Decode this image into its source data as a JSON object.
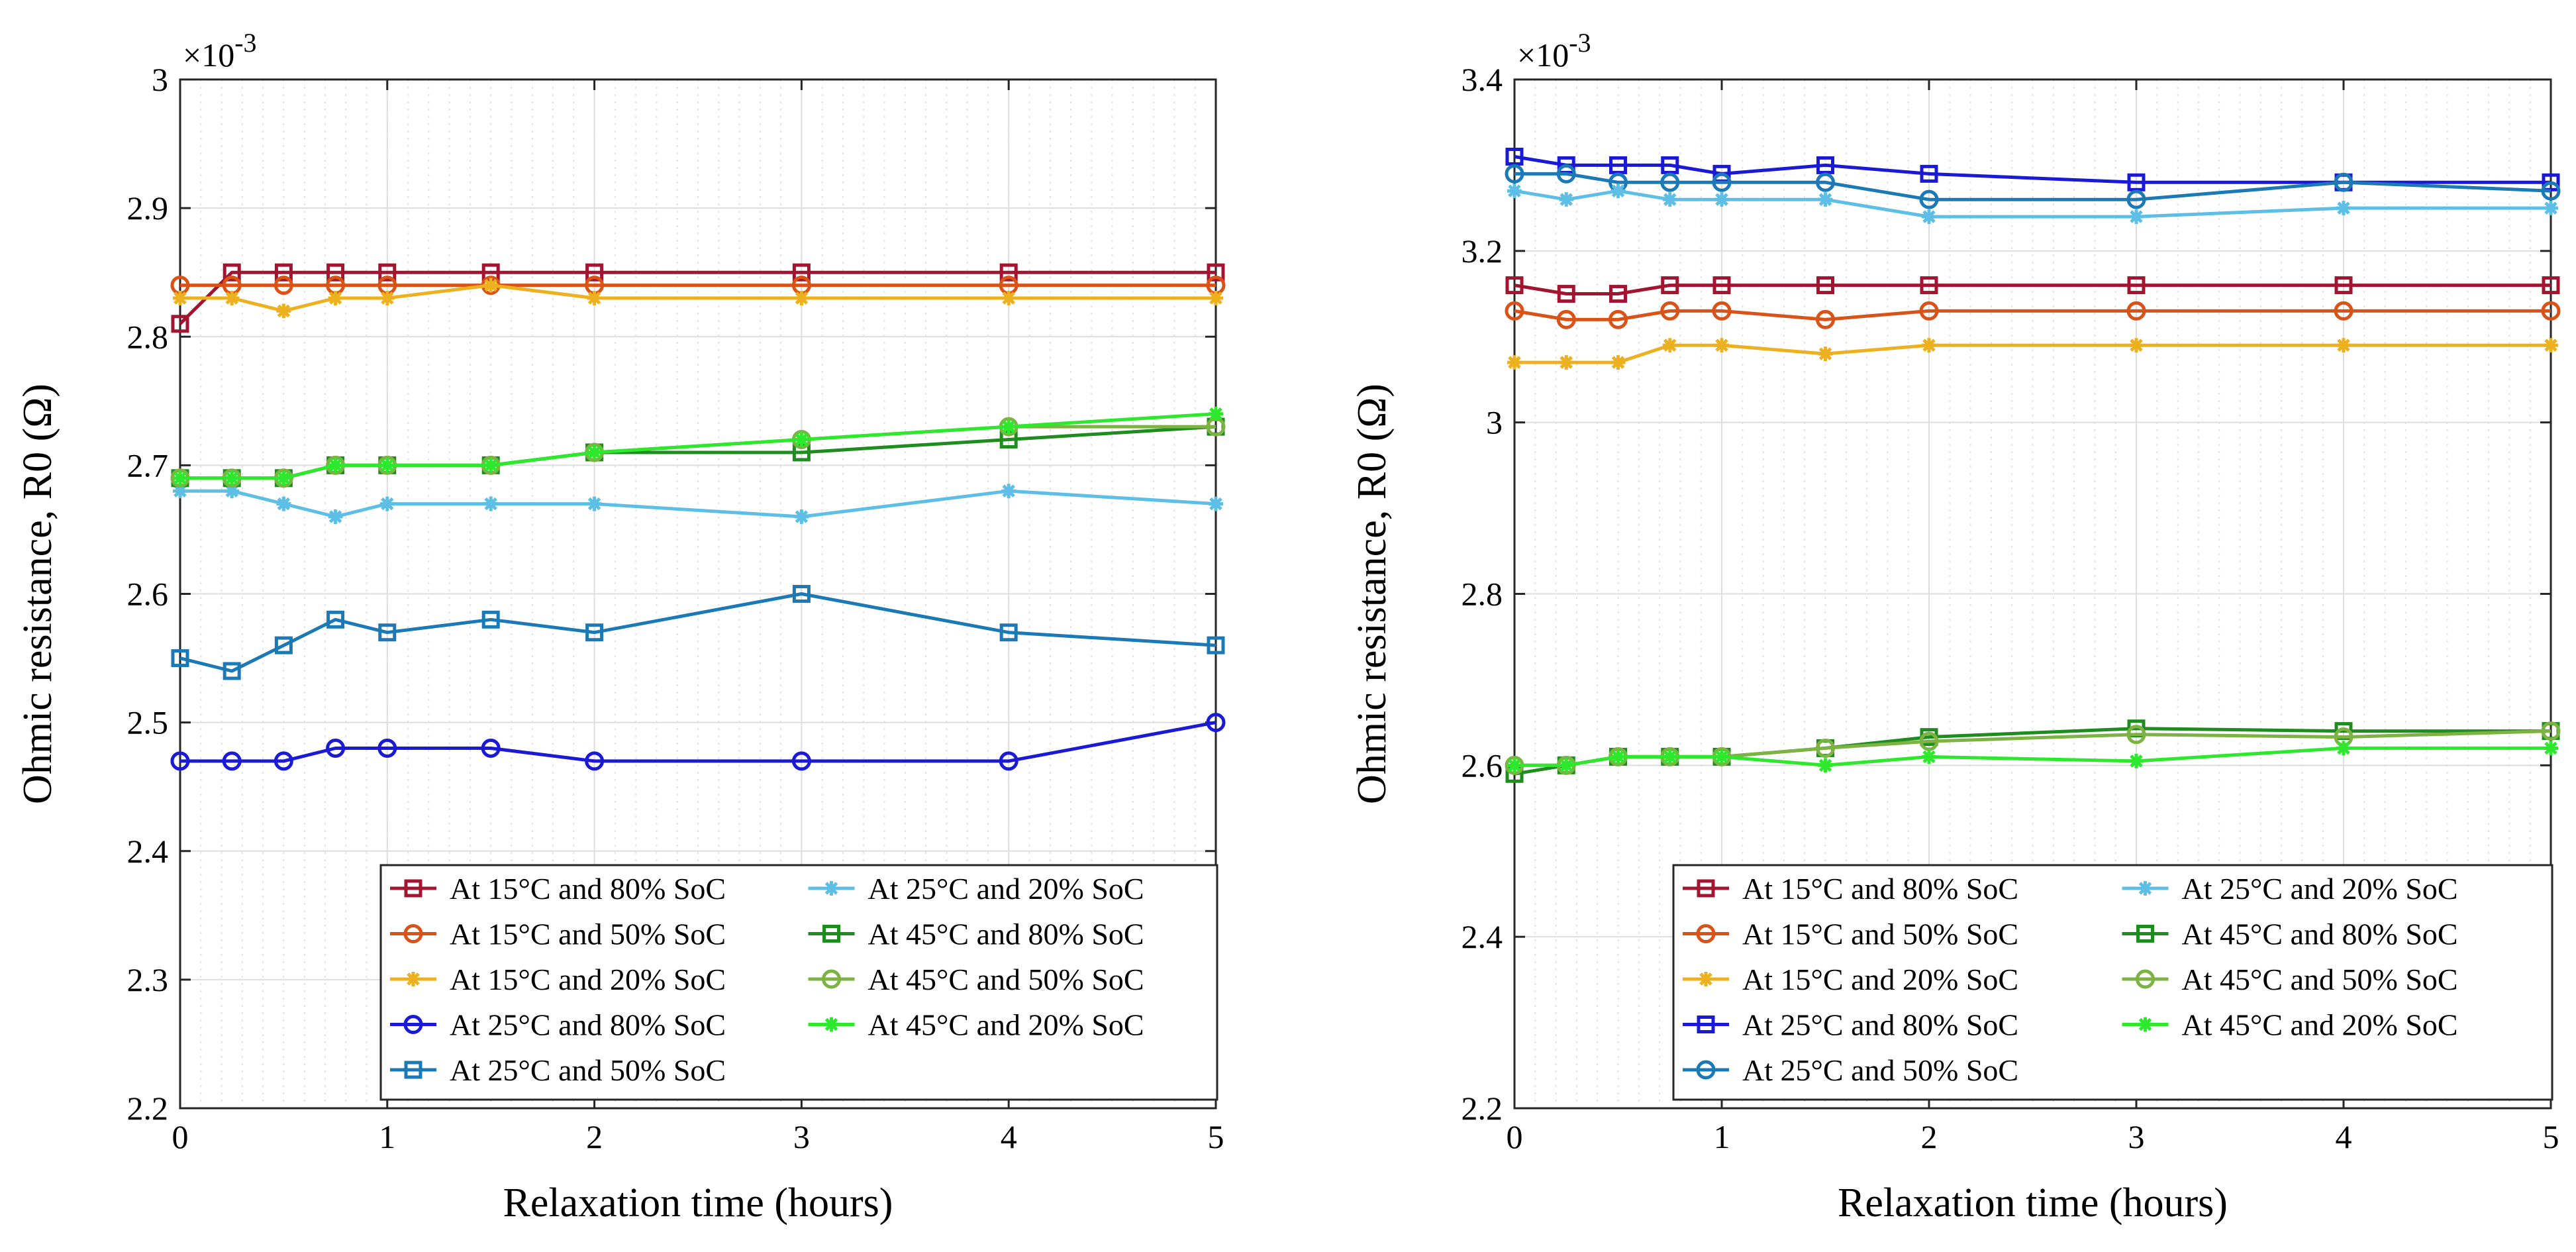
{
  "figure": {
    "panel_count": 2
  },
  "chart_data": [
    {
      "type": "line",
      "panel": "left",
      "xlabel": "Relaxation time (hours)",
      "ylabel": "Ohmic resistance, R0 (Ω)",
      "exponent_label": "×10",
      "exponent_power": "-3",
      "xlim": [
        0,
        5
      ],
      "ylim": [
        2.2,
        3.0
      ],
      "xticks": [
        0,
        1,
        2,
        3,
        4,
        5
      ],
      "xtick_labels": [
        "0",
        "1",
        "2",
        "3",
        "4",
        "5"
      ],
      "yticks": [
        2.2,
        2.3,
        2.4,
        2.5,
        2.6,
        2.7,
        2.8,
        2.9,
        3.0
      ],
      "ytick_labels": [
        "2.2",
        "2.3",
        "2.4",
        "2.5",
        "2.6",
        "2.7",
        "2.8",
        "2.9",
        "3"
      ],
      "grid": true,
      "legend_placement": "bottom-right",
      "x": [
        0,
        0.25,
        0.5,
        0.75,
        1,
        1.5,
        2,
        3,
        4,
        5
      ],
      "series": [
        {
          "name": "At 15°C and 80% SoC",
          "color": "#a2142f",
          "marker": "square",
          "values": [
            2.81,
            2.85,
            2.85,
            2.85,
            2.85,
            2.85,
            2.85,
            2.85,
            2.85,
            2.85
          ]
        },
        {
          "name": "At 15°C and 50% SoC",
          "color": "#d95319",
          "marker": "circle",
          "values": [
            2.84,
            2.84,
            2.84,
            2.84,
            2.84,
            2.84,
            2.84,
            2.84,
            2.84,
            2.84
          ]
        },
        {
          "name": "At 15°C and 20% SoC",
          "color": "#edb120",
          "marker": "asterisk",
          "values": [
            2.83,
            2.83,
            2.82,
            2.83,
            2.83,
            2.84,
            2.83,
            2.83,
            2.83,
            2.83
          ]
        },
        {
          "name": "At 25°C and 80% SoC",
          "color": "#1a1ad6",
          "marker": "circle",
          "values": [
            2.47,
            2.47,
            2.47,
            2.48,
            2.48,
            2.48,
            2.47,
            2.47,
            2.47,
            2.5
          ]
        },
        {
          "name": "At 25°C and 50% SoC",
          "color": "#1b7ab5",
          "marker": "square",
          "values": [
            2.55,
            2.54,
            2.56,
            2.58,
            2.57,
            2.58,
            2.57,
            2.6,
            2.57,
            2.56
          ]
        },
        {
          "name": "At 25°C and 20% SoC",
          "color": "#5ebfe6",
          "marker": "asterisk",
          "values": [
            2.68,
            2.68,
            2.67,
            2.66,
            2.67,
            2.67,
            2.67,
            2.66,
            2.68,
            2.67
          ]
        },
        {
          "name": "At 45°C and 80% SoC",
          "color": "#1e8c1e",
          "marker": "square",
          "values": [
            2.69,
            2.69,
            2.69,
            2.7,
            2.7,
            2.7,
            2.71,
            2.71,
            2.72,
            2.73
          ]
        },
        {
          "name": "At 45°C and 50% SoC",
          "color": "#7cb342",
          "marker": "circle",
          "values": [
            2.69,
            2.69,
            2.69,
            2.7,
            2.7,
            2.7,
            2.71,
            2.72,
            2.73,
            2.73
          ]
        },
        {
          "name": "At 45°C and 20% SoC",
          "color": "#2ee82e",
          "marker": "asterisk",
          "values": [
            2.69,
            2.69,
            2.69,
            2.7,
            2.7,
            2.7,
            2.71,
            2.72,
            2.73,
            2.74
          ]
        }
      ]
    },
    {
      "type": "line",
      "panel": "right",
      "xlabel": "Relaxation time (hours)",
      "ylabel": "Ohmic resistance, R0 (Ω)",
      "exponent_label": "×10",
      "exponent_power": "-3",
      "xlim": [
        0,
        5
      ],
      "ylim": [
        2.2,
        3.4
      ],
      "xticks": [
        0,
        1,
        2,
        3,
        4,
        5
      ],
      "xtick_labels": [
        "0",
        "1",
        "2",
        "3",
        "4",
        "5"
      ],
      "yticks": [
        2.2,
        2.4,
        2.6,
        2.8,
        3.0,
        3.2,
        3.4
      ],
      "ytick_labels": [
        "2.2",
        "2.4",
        "2.6",
        "2.8",
        "3",
        "3.2",
        "3.4"
      ],
      "grid": true,
      "legend_placement": "bottom-right",
      "x": [
        0,
        0.25,
        0.5,
        0.75,
        1,
        1.5,
        2,
        3,
        4,
        5
      ],
      "series": [
        {
          "name": "At 15°C and 80% SoC",
          "color": "#a2142f",
          "marker": "square",
          "values": [
            3.16,
            3.15,
            3.15,
            3.16,
            3.16,
            3.16,
            3.16,
            3.16,
            3.16,
            3.16
          ]
        },
        {
          "name": "At 15°C and 50% SoC",
          "color": "#d95319",
          "marker": "circle",
          "values": [
            3.13,
            3.12,
            3.12,
            3.13,
            3.13,
            3.12,
            3.13,
            3.13,
            3.13,
            3.13
          ]
        },
        {
          "name": "At 15°C and 20% SoC",
          "color": "#edb120",
          "marker": "asterisk",
          "values": [
            3.07,
            3.07,
            3.07,
            3.09,
            3.09,
            3.08,
            3.09,
            3.09,
            3.09,
            3.09
          ]
        },
        {
          "name": "At 25°C and 80% SoC",
          "color": "#1a1ad6",
          "marker": "square",
          "values": [
            3.31,
            3.3,
            3.3,
            3.3,
            3.29,
            3.3,
            3.29,
            3.28,
            3.28,
            3.28
          ]
        },
        {
          "name": "At 25°C and 50% SoC",
          "color": "#1b7ab5",
          "marker": "circle",
          "values": [
            3.29,
            3.29,
            3.28,
            3.28,
            3.28,
            3.28,
            3.26,
            3.26,
            3.28,
            3.27
          ]
        },
        {
          "name": "At 25°C and 20% SoC",
          "color": "#5ebfe6",
          "marker": "asterisk",
          "values": [
            3.27,
            3.26,
            3.27,
            3.26,
            3.26,
            3.26,
            3.24,
            3.24,
            3.25,
            3.25
          ]
        },
        {
          "name": "At 45°C and 80% SoC",
          "color": "#1e8c1e",
          "marker": "square",
          "values": [
            2.59,
            2.6,
            2.61,
            2.61,
            2.61,
            2.62,
            2.633,
            2.643,
            2.64,
            2.64
          ]
        },
        {
          "name": "At 45°C and 50% SoC",
          "color": "#7cb342",
          "marker": "circle",
          "values": [
            2.6,
            2.6,
            2.61,
            2.61,
            2.61,
            2.62,
            2.628,
            2.636,
            2.633,
            2.64
          ]
        },
        {
          "name": "At 45°C and 20% SoC",
          "color": "#2ee82e",
          "marker": "asterisk",
          "values": [
            2.6,
            2.6,
            2.61,
            2.61,
            2.61,
            2.6,
            2.61,
            2.605,
            2.62,
            2.62
          ]
        }
      ]
    }
  ]
}
